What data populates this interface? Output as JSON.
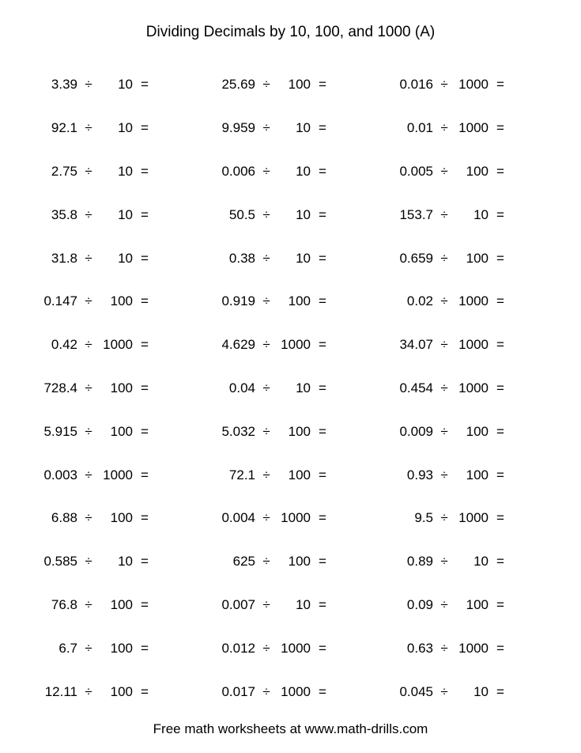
{
  "title": "Dividing Decimals by 10, 100, and 1000 (A)",
  "footer": "Free math worksheets at www.math-drills.com",
  "operator": "÷",
  "equals": "=",
  "text_color": "#000000",
  "background_color": "#ffffff",
  "font_size_body": 17,
  "font_size_title": 19,
  "columns": [
    [
      {
        "a": "3.39",
        "b": "10"
      },
      {
        "a": "92.1",
        "b": "10"
      },
      {
        "a": "2.75",
        "b": "10"
      },
      {
        "a": "35.8",
        "b": "10"
      },
      {
        "a": "31.8",
        "b": "10"
      },
      {
        "a": "0.147",
        "b": "100"
      },
      {
        "a": "0.42",
        "b": "1000"
      },
      {
        "a": "728.4",
        "b": "100"
      },
      {
        "a": "5.915",
        "b": "100"
      },
      {
        "a": "0.003",
        "b": "1000"
      },
      {
        "a": "6.88",
        "b": "100"
      },
      {
        "a": "0.585",
        "b": "10"
      },
      {
        "a": "76.8",
        "b": "100"
      },
      {
        "a": "6.7",
        "b": "100"
      },
      {
        "a": "12.11",
        "b": "100"
      }
    ],
    [
      {
        "a": "25.69",
        "b": "100"
      },
      {
        "a": "9.959",
        "b": "10"
      },
      {
        "a": "0.006",
        "b": "10"
      },
      {
        "a": "50.5",
        "b": "10"
      },
      {
        "a": "0.38",
        "b": "10"
      },
      {
        "a": "0.919",
        "b": "100"
      },
      {
        "a": "4.629",
        "b": "1000"
      },
      {
        "a": "0.04",
        "b": "10"
      },
      {
        "a": "5.032",
        "b": "100"
      },
      {
        "a": "72.1",
        "b": "100"
      },
      {
        "a": "0.004",
        "b": "1000"
      },
      {
        "a": "625",
        "b": "100"
      },
      {
        "a": "0.007",
        "b": "10"
      },
      {
        "a": "0.012",
        "b": "1000"
      },
      {
        "a": "0.017",
        "b": "1000"
      }
    ],
    [
      {
        "a": "0.016",
        "b": "1000"
      },
      {
        "a": "0.01",
        "b": "1000"
      },
      {
        "a": "0.005",
        "b": "100"
      },
      {
        "a": "153.7",
        "b": "10"
      },
      {
        "a": "0.659",
        "b": "100"
      },
      {
        "a": "0.02",
        "b": "1000"
      },
      {
        "a": "34.07",
        "b": "1000"
      },
      {
        "a": "0.454",
        "b": "1000"
      },
      {
        "a": "0.009",
        "b": "100"
      },
      {
        "a": "0.93",
        "b": "100"
      },
      {
        "a": "9.5",
        "b": "1000"
      },
      {
        "a": "0.89",
        "b": "10"
      },
      {
        "a": "0.09",
        "b": "100"
      },
      {
        "a": "0.63",
        "b": "1000"
      },
      {
        "a": "0.045",
        "b": "10"
      }
    ]
  ]
}
